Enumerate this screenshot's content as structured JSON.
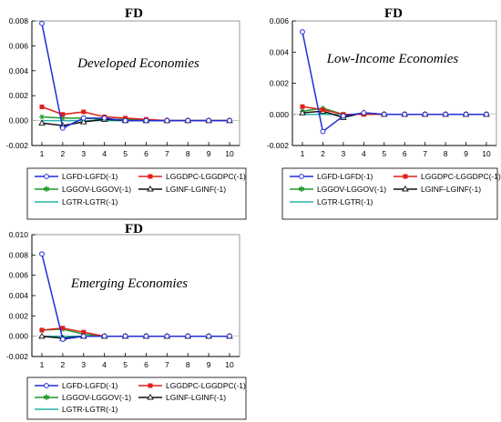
{
  "legend_line_colors": {
    "LGFD": "#1f2fd6",
    "LGGDPC": "#e0201b",
    "LGGOV": "#1f9a2a",
    "LGINF": "#111111",
    "LGTR": "#25b3a7"
  },
  "chart_data": [
    {
      "type": "line",
      "title": "FD",
      "annotation": "Developed Economies",
      "x": [
        1,
        2,
        3,
        4,
        5,
        6,
        7,
        8,
        9,
        10
      ],
      "ylim": [
        -0.002,
        0.008
      ],
      "yticks": [
        "0.008",
        "0.006",
        "0.004",
        "0.002",
        "0.000",
        "-0.002"
      ],
      "yticks_values": [
        0.008,
        0.006,
        0.004,
        0.002,
        0.0,
        -0.002
      ],
      "grid": false,
      "series": [
        {
          "name": "LGFD-LGFD(-1)",
          "color": "#1f2fd6",
          "marker": "circle",
          "values": [
            0.0078,
            -0.0006,
            0.0002,
            0.0002,
            0.0,
            0.0,
            0.0,
            0.0,
            0.0,
            0.0
          ]
        },
        {
          "name": "LGGDPC-LGGDPC(-1)",
          "color": "#e0201b",
          "marker": "square",
          "values": [
            0.0011,
            0.0005,
            0.0007,
            0.0003,
            0.0002,
            0.0001,
            0.0,
            0.0,
            0.0,
            0.0
          ]
        },
        {
          "name": "LGGOV-LGGOV(-1)",
          "color": "#1f9a2a",
          "marker": "star",
          "values": [
            0.0003,
            0.0002,
            0.0002,
            0.0001,
            0.0001,
            0.0,
            0.0,
            0.0,
            0.0,
            0.0
          ]
        },
        {
          "name": "LGINF-LGINF(-1)",
          "color": "#111111",
          "marker": "triangle",
          "values": [
            -0.0002,
            -0.0004,
            -0.0001,
            0.0001,
            0.0,
            0.0,
            0.0,
            0.0,
            0.0,
            0.0
          ]
        },
        {
          "name": "LGTR-LGTR(-1)",
          "color": "#25b3a7",
          "marker": "none",
          "values": [
            0.0,
            0.0,
            0.0,
            0.0,
            0.0,
            0.0,
            0.0,
            0.0,
            0.0,
            0.0
          ]
        }
      ]
    },
    {
      "type": "line",
      "title": "FD",
      "annotation": "Low-Income Economies",
      "x": [
        1,
        2,
        3,
        4,
        5,
        6,
        7,
        8,
        9,
        10
      ],
      "ylim": [
        -0.002,
        0.006
      ],
      "yticks": [
        "0.006",
        "0.004",
        "0.002",
        "0.000",
        "-0.002"
      ],
      "yticks_values": [
        0.006,
        0.004,
        0.002,
        0.0,
        -0.002
      ],
      "grid": false,
      "series": [
        {
          "name": "LGFD-LGFD(-1)",
          "color": "#1f2fd6",
          "marker": "circle",
          "values": [
            0.0053,
            -0.0011,
            -0.0001,
            0.0001,
            0.0,
            0.0,
            0.0,
            0.0,
            0.0,
            0.0
          ]
        },
        {
          "name": "LGGDPC-LGGDPC(-1)",
          "color": "#e0201b",
          "marker": "square",
          "values": [
            0.0005,
            0.0003,
            0.0,
            0.0,
            0.0,
            0.0,
            0.0,
            0.0,
            0.0,
            0.0
          ]
        },
        {
          "name": "LGGOV-LGGOV(-1)",
          "color": "#1f9a2a",
          "marker": "star",
          "values": [
            0.0002,
            0.0004,
            0.0,
            0.0,
            0.0,
            0.0,
            0.0,
            0.0,
            0.0,
            0.0
          ]
        },
        {
          "name": "LGINF-LGINF(-1)",
          "color": "#111111",
          "marker": "triangle",
          "values": [
            0.0001,
            0.0002,
            -0.0002,
            0.0001,
            0.0,
            0.0,
            0.0,
            0.0,
            0.0,
            0.0
          ]
        },
        {
          "name": "LGTR-LGTR(-1)",
          "color": "#25b3a7",
          "marker": "none",
          "values": [
            0.0,
            0.0,
            0.0,
            0.0,
            0.0,
            0.0,
            0.0,
            0.0,
            0.0,
            0.0
          ]
        }
      ]
    },
    {
      "type": "line",
      "title": "FD",
      "annotation": "Emerging Economies",
      "x": [
        1,
        2,
        3,
        4,
        5,
        6,
        7,
        8,
        9,
        10
      ],
      "ylim": [
        -0.002,
        0.01
      ],
      "yticks": [
        "0.010",
        "0.008",
        "0.006",
        "0.004",
        "0.002",
        "0.000",
        "-0.002"
      ],
      "yticks_values": [
        0.01,
        0.008,
        0.006,
        0.004,
        0.002,
        0.0,
        -0.002
      ],
      "grid": false,
      "series": [
        {
          "name": "LGFD-LGFD(-1)",
          "color": "#1f2fd6",
          "marker": "circle",
          "values": [
            0.0081,
            -0.0003,
            0.0,
            0.0,
            0.0,
            0.0,
            0.0,
            0.0,
            0.0,
            0.0
          ]
        },
        {
          "name": "LGGDPC-LGGDPC(-1)",
          "color": "#e0201b",
          "marker": "square",
          "values": [
            0.0006,
            0.0008,
            0.0004,
            0.0,
            0.0,
            0.0,
            0.0,
            0.0,
            0.0,
            0.0
          ]
        },
        {
          "name": "LGGOV-LGGOV(-1)",
          "color": "#1f9a2a",
          "marker": "star",
          "values": [
            0.0006,
            0.0007,
            0.0002,
            0.0,
            0.0,
            0.0,
            0.0,
            0.0,
            0.0,
            0.0
          ]
        },
        {
          "name": "LGINF-LGINF(-1)",
          "color": "#111111",
          "marker": "triangle",
          "values": [
            0.0,
            -0.0002,
            0.0,
            0.0,
            0.0,
            0.0,
            0.0,
            0.0,
            0.0,
            0.0
          ]
        },
        {
          "name": "LGTR-LGTR(-1)",
          "color": "#25b3a7",
          "marker": "none",
          "values": [
            0.0,
            0.0,
            0.0,
            0.0,
            0.0,
            0.0,
            0.0,
            0.0,
            0.0,
            0.0
          ]
        }
      ]
    }
  ]
}
